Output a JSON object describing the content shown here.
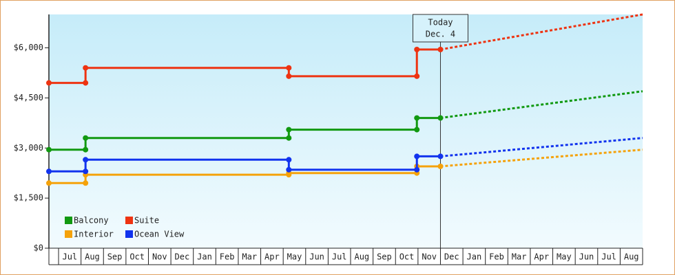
{
  "chart_data": {
    "type": "line",
    "categories": [
      "Jul",
      "Aug",
      "Sep",
      "Oct",
      "Nov",
      "Dec",
      "Jan",
      "Feb",
      "Mar",
      "Apr",
      "May",
      "Jun",
      "Jul",
      "Aug",
      "Sep",
      "Oct",
      "Nov",
      "Dec",
      "Jan",
      "Feb",
      "Mar",
      "Apr",
      "May",
      "Jun",
      "Jul",
      "Aug"
    ],
    "xlim": [
      -0.43,
      26
    ],
    "ylim": [
      0,
      7000
    ],
    "yticks": [
      {
        "value": 0,
        "label": "$0"
      },
      {
        "value": 1500,
        "label": "$1,500"
      },
      {
        "value": 3000,
        "label": "$3,000"
      },
      {
        "value": 4500,
        "label": "$4,500"
      },
      {
        "value": 6000,
        "label": "$6,000"
      }
    ],
    "annotation": {
      "x": 17.0,
      "lines": [
        "Today",
        "Dec. 4"
      ]
    },
    "series": [
      {
        "name": "Balcony",
        "color": "#119911",
        "x": [
          -0.43,
          1.2,
          1.2,
          10.25,
          10.25,
          15.95,
          15.95,
          17.0
        ],
        "values": [
          2950,
          2950,
          3300,
          3300,
          3550,
          3550,
          3900,
          3900
        ],
        "forecast": {
          "x": [
            17.0,
            26
          ],
          "values": [
            3900,
            4700
          ]
        }
      },
      {
        "name": "Suite",
        "color": "#ee3311",
        "x": [
          -0.43,
          1.2,
          1.2,
          10.25,
          10.25,
          15.95,
          15.95,
          17.0
        ],
        "values": [
          4950,
          4950,
          5400,
          5400,
          5150,
          5150,
          5950,
          5950
        ],
        "forecast": {
          "x": [
            17.0,
            26
          ],
          "values": [
            5950,
            7000
          ]
        }
      },
      {
        "name": "Interior",
        "color": "#f5a20a",
        "x": [
          -0.43,
          1.2,
          1.2,
          10.25,
          10.25,
          15.95,
          15.95,
          17.0
        ],
        "values": [
          1950,
          1950,
          2200,
          2200,
          2250,
          2250,
          2450,
          2450
        ],
        "forecast": {
          "x": [
            17.0,
            26
          ],
          "values": [
            2450,
            2950
          ]
        }
      },
      {
        "name": "Ocean View",
        "color": "#1133ee",
        "x": [
          -0.43,
          1.2,
          1.2,
          10.25,
          10.25,
          15.95,
          15.95,
          17.0
        ],
        "values": [
          2300,
          2300,
          2650,
          2650,
          2350,
          2350,
          2750,
          2750
        ],
        "forecast": {
          "x": [
            17.0,
            26
          ],
          "values": [
            2750,
            3300
          ]
        }
      }
    ]
  }
}
